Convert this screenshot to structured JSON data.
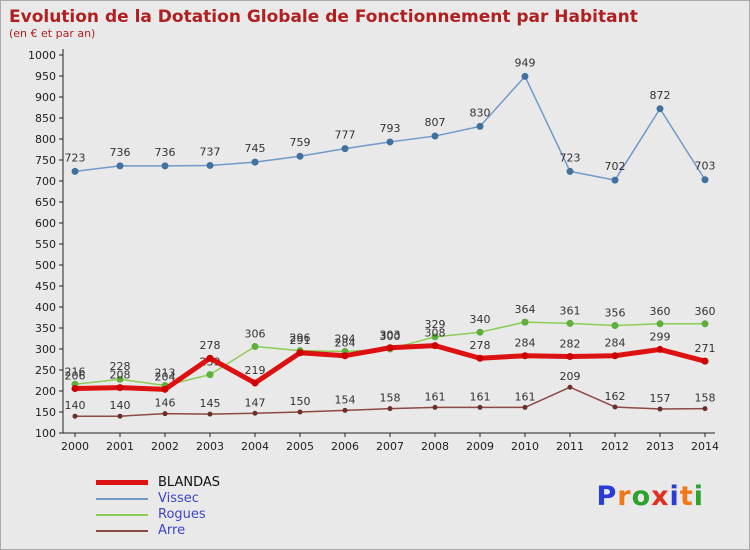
{
  "chart_data": {
    "type": "line",
    "title": "Evolution de la Dotation Globale de Fonctionnement par Habitant",
    "subtitle": "(en € et par an)",
    "x": [
      2000,
      2001,
      2002,
      2003,
      2004,
      2005,
      2006,
      2007,
      2008,
      2009,
      2010,
      2011,
      2012,
      2013,
      2014
    ],
    "xlabel": "",
    "ylabel": "",
    "ylim": [
      100,
      1000
    ],
    "ytick": 50,
    "grid": false,
    "legend_position": "bottom-left",
    "series": [
      {
        "name": "BLANDAS",
        "color": "#dd1111",
        "marker_color": "#cc0000",
        "width": 5,
        "label_color": "#111111",
        "values": [
          206,
          208,
          204,
          278,
          219,
          291,
          284,
          303,
          308,
          278,
          284,
          282,
          284,
          299,
          271
        ]
      },
      {
        "name": "Vissec",
        "color": "#7099c8",
        "marker_color": "#41729f",
        "width": 1.5,
        "label_color": "#3a46c8",
        "values": [
          723,
          736,
          736,
          737,
          745,
          759,
          777,
          793,
          807,
          830,
          949,
          723,
          702,
          872,
          703
        ]
      },
      {
        "name": "Rogues",
        "color": "#8ccc55",
        "marker_color": "#5eae3c",
        "width": 1.5,
        "label_color": "#3a46c8",
        "values": [
          216,
          228,
          213,
          239,
          306,
          296,
          294,
          300,
          329,
          340,
          364,
          361,
          356,
          360,
          360
        ]
      },
      {
        "name": "Arre",
        "color": "#8b4a43",
        "marker_color": "#6b2f2a",
        "width": 1.5,
        "label_color": "#3a46c8",
        "values": [
          140,
          140,
          146,
          145,
          147,
          150,
          154,
          158,
          161,
          161,
          161,
          209,
          162,
          157,
          158
        ]
      }
    ]
  },
  "brand": {
    "name": "Proxiti",
    "letters": [
      "P",
      "r",
      "o",
      "x",
      "i",
      "t",
      "i"
    ],
    "colors": [
      "#2b3bd6",
      "#f07818",
      "#2fa12f",
      "#e03020",
      "#2b3bd6",
      "#f07818",
      "#2fa12f"
    ]
  },
  "colors": {
    "background": "#e9e9e9",
    "axis": "#222222",
    "title": "#b02020",
    "value_labels": "#333333"
  }
}
